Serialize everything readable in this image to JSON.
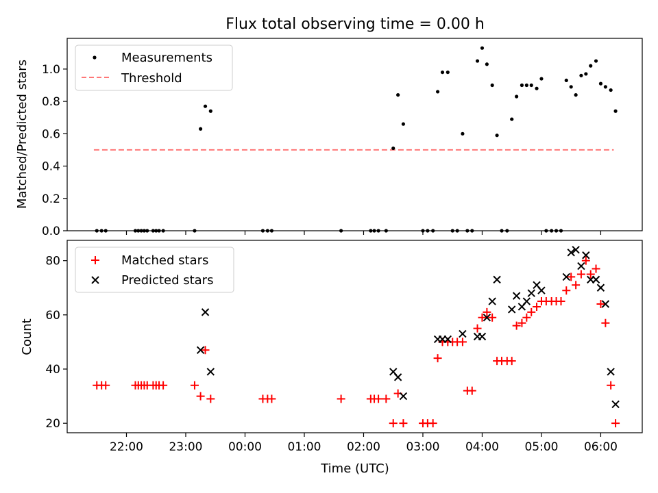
{
  "chart_data": [
    {
      "type": "scatter",
      "title": "Flux total observing time = 0.00 h",
      "xlabel": "",
      "ylabel": "Matched/Predicted stars",
      "xlim": [
        21.0,
        6.7
      ],
      "ylim": [
        0,
        1.19
      ],
      "yticks": [
        "0.0",
        "0.2",
        "0.4",
        "0.6",
        "0.8",
        "1.0"
      ],
      "ytick_values": [
        0.0,
        0.2,
        0.4,
        0.6,
        0.8,
        1.0
      ],
      "legend": {
        "position": "top-left",
        "entries": [
          "Measurements",
          "Threshold"
        ]
      },
      "series": [
        {
          "name": "Measurements",
          "marker": "dot",
          "color": "#000000",
          "x": [
            21.5,
            21.58,
            21.65,
            22.15,
            22.2,
            22.25,
            22.3,
            22.35,
            22.45,
            22.5,
            22.55,
            22.62,
            23.15,
            23.25,
            23.33,
            23.42,
            0.3,
            0.38,
            0.45,
            1.62,
            2.12,
            2.18,
            2.25,
            2.38,
            2.5,
            2.58,
            2.67,
            3.0,
            3.08,
            3.17,
            3.25,
            3.33,
            3.42,
            3.5,
            3.58,
            3.67,
            3.75,
            3.83,
            3.92,
            4.0,
            4.08,
            4.17,
            4.25,
            4.33,
            4.42,
            4.5,
            4.58,
            4.67,
            4.75,
            4.83,
            4.92,
            5.0,
            5.08,
            5.17,
            5.25,
            5.33,
            5.42,
            5.5,
            5.58,
            5.67,
            5.75,
            5.83,
            5.92,
            6.0,
            6.08,
            6.17,
            6.25
          ],
          "y": [
            0,
            0,
            0,
            0,
            0,
            0,
            0,
            0,
            0,
            0,
            0,
            0,
            0,
            0.63,
            0.77,
            0.74,
            0,
            0,
            0,
            0,
            0,
            0,
            0,
            0,
            0.51,
            0.84,
            0.66,
            0,
            0,
            0,
            0.86,
            0.98,
            0.98,
            0,
            0,
            0.6,
            0,
            0,
            1.05,
            1.13,
            1.03,
            0.9,
            0.59,
            0,
            0,
            0.69,
            0.83,
            0.9,
            0.9,
            0.9,
            0.88,
            0.94,
            0,
            0,
            0,
            0,
            0.93,
            0.89,
            0.84,
            0.96,
            0.97,
            1.02,
            1.05,
            0.91,
            0.89,
            0.87,
            0.74
          ]
        },
        {
          "name": "Threshold",
          "type": "line",
          "style": "dashed",
          "color": "#ff7777",
          "x": [
            21.45,
            6.22
          ],
          "y": [
            0.5,
            0.5
          ]
        }
      ]
    },
    {
      "type": "scatter",
      "title": "",
      "xlabel": "Time (UTC)",
      "ylabel": "Count",
      "xlim": [
        21.0,
        6.7
      ],
      "ylim": [
        16.5,
        87.5
      ],
      "xticks": [
        "22:00",
        "23:00",
        "00:00",
        "01:00",
        "02:00",
        "03:00",
        "04:00",
        "05:00",
        "06:00"
      ],
      "xtick_values": [
        22,
        23,
        0,
        1,
        2,
        3,
        4,
        5,
        6
      ],
      "yticks": [
        "20",
        "40",
        "60",
        "80"
      ],
      "ytick_values": [
        20,
        40,
        60,
        80
      ],
      "legend": {
        "position": "top-left",
        "entries": [
          "Matched stars",
          "Predicted stars"
        ]
      },
      "series": [
        {
          "name": "Matched stars",
          "marker": "plus",
          "color": "#ff0000",
          "x": [
            21.5,
            21.58,
            21.65,
            22.15,
            22.2,
            22.25,
            22.3,
            22.35,
            22.45,
            22.5,
            22.55,
            22.62,
            23.15,
            23.25,
            23.33,
            23.42,
            0.3,
            0.38,
            0.45,
            1.62,
            2.12,
            2.18,
            2.25,
            2.38,
            2.5,
            2.58,
            2.67,
            3.0,
            3.08,
            3.17,
            3.25,
            3.33,
            3.42,
            3.5,
            3.58,
            3.67,
            3.75,
            3.83,
            3.92,
            4.0,
            4.08,
            4.17,
            4.25,
            4.33,
            4.42,
            4.5,
            4.58,
            4.67,
            4.75,
            4.83,
            4.92,
            5.0,
            5.08,
            5.17,
            5.25,
            5.33,
            5.42,
            5.5,
            5.58,
            5.67,
            5.75,
            5.83,
            5.92,
            6.0,
            6.08,
            6.17,
            6.25
          ],
          "y": [
            34,
            34,
            34,
            34,
            34,
            34,
            34,
            34,
            34,
            34,
            34,
            34,
            34,
            30,
            47,
            29,
            29,
            29,
            29,
            29,
            29,
            29,
            29,
            29,
            20,
            31,
            20,
            20,
            20,
            20,
            44,
            50,
            50,
            50,
            50,
            50,
            32,
            32,
            55,
            59,
            61,
            59,
            43,
            43,
            43,
            43,
            56,
            57,
            59,
            61,
            63,
            65,
            65,
            65,
            65,
            65,
            69,
            74,
            71,
            75,
            80,
            75,
            77,
            64,
            57,
            34,
            20
          ]
        },
        {
          "name": "Predicted stars",
          "marker": "x",
          "color": "#000000",
          "x": [
            23.25,
            23.33,
            23.42,
            2.5,
            2.58,
            2.67,
            3.25,
            3.33,
            3.42,
            3.67,
            3.92,
            4.0,
            4.08,
            4.17,
            4.25,
            4.5,
            4.58,
            4.67,
            4.75,
            4.83,
            4.92,
            5.0,
            5.42,
            5.5,
            5.58,
            5.67,
            5.75,
            5.83,
            5.92,
            6.0,
            6.08,
            6.17,
            6.25
          ],
          "y": [
            47,
            61,
            39,
            39,
            37,
            30,
            51,
            51,
            51,
            53,
            52,
            52,
            59,
            65,
            73,
            62,
            67,
            63,
            65,
            68,
            71,
            69,
            74,
            83,
            84,
            78,
            82,
            73,
            73,
            70,
            64,
            39,
            27
          ]
        }
      ]
    }
  ]
}
